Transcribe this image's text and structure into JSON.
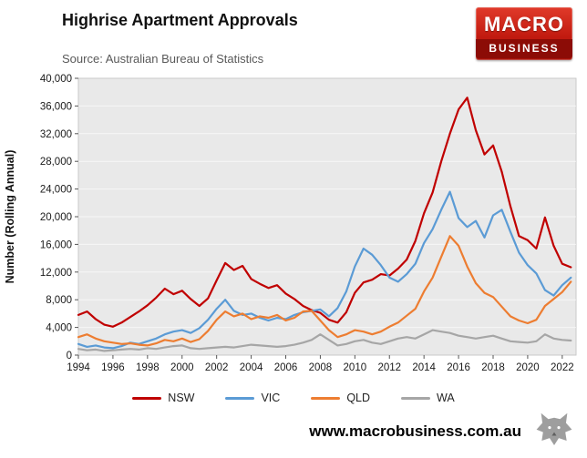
{
  "header": {
    "title": "Highrise Apartment Approvals",
    "subtitle": "Source: Australian Bureau of Statistics"
  },
  "logo": {
    "line1": "MACRO",
    "line2": "BUSINESS",
    "bg_color": "#c21b10"
  },
  "footer": {
    "url": "www.macrobusiness.com.au",
    "wolf_icon": "wolf-logo"
  },
  "chart_data": {
    "type": "line",
    "title": "Highrise Apartment Approvals",
    "subtitle": "Source: Australian Bureau of Statistics",
    "xlabel": "",
    "ylabel": "Number (Rolling Annual)",
    "ylim": [
      0,
      40000
    ],
    "ytick_step": 4000,
    "xlim": [
      1994,
      2022.8
    ],
    "xticks": [
      1994,
      1996,
      1998,
      2000,
      2002,
      2004,
      2006,
      2008,
      2010,
      2012,
      2014,
      2016,
      2018,
      2020,
      2022
    ],
    "grid": true,
    "plot_bg": "#e9e9e9",
    "legend_position": "bottom",
    "x": [
      1994,
      1994.5,
      1995,
      1995.5,
      1996,
      1996.5,
      1997,
      1997.5,
      1998,
      1998.5,
      1999,
      1999.5,
      2000,
      2000.5,
      2001,
      2001.5,
      2002,
      2002.5,
      2003,
      2003.5,
      2004,
      2004.5,
      2005,
      2005.5,
      2006,
      2006.5,
      2007,
      2007.5,
      2008,
      2008.5,
      2009,
      2009.5,
      2010,
      2010.5,
      2011,
      2011.5,
      2012,
      2012.5,
      2013,
      2013.5,
      2014,
      2014.5,
      2015,
      2015.5,
      2016,
      2016.5,
      2017,
      2017.5,
      2018,
      2018.5,
      2019,
      2019.5,
      2020,
      2020.5,
      2021,
      2021.5,
      2022,
      2022.5
    ],
    "series": [
      {
        "name": "NSW",
        "color": "#c00000",
        "values": [
          5800,
          6300,
          5200,
          4400,
          4100,
          4700,
          5500,
          6300,
          7200,
          8300,
          9600,
          8800,
          9300,
          8100,
          7100,
          8200,
          10800,
          13300,
          12300,
          12900,
          11000,
          10300,
          9700,
          10100,
          8900,
          8100,
          7100,
          6500,
          6100,
          5100,
          4700,
          6200,
          9000,
          10500,
          10900,
          11700,
          11500,
          12500,
          13800,
          16500,
          20500,
          23500,
          28000,
          32000,
          35500,
          37200,
          32500,
          29000,
          30300,
          26500,
          21500,
          17200,
          16600,
          15400,
          19900,
          15800,
          13200,
          12700
        ]
      },
      {
        "name": "VIC",
        "color": "#5b9bd5",
        "values": [
          1600,
          1200,
          1400,
          1100,
          1000,
          1300,
          1800,
          1600,
          2000,
          2400,
          3000,
          3400,
          3600,
          3200,
          3900,
          5100,
          6700,
          8000,
          6400,
          5800,
          6000,
          5400,
          5000,
          5400,
          5200,
          5800,
          6200,
          6400,
          6600,
          5600,
          6800,
          9200,
          12800,
          15400,
          14500,
          13000,
          11200,
          10600,
          11700,
          13200,
          16200,
          18200,
          21000,
          23600,
          19800,
          18500,
          19400,
          17000,
          20200,
          21000,
          17800,
          14800,
          13000,
          11800,
          9400,
          8600,
          10100,
          11200
        ]
      },
      {
        "name": "QLD",
        "color": "#ed7d31",
        "values": [
          2600,
          3000,
          2400,
          2000,
          1800,
          1600,
          1700,
          1500,
          1400,
          1700,
          2200,
          2000,
          2400,
          1900,
          2300,
          3500,
          5100,
          6300,
          5600,
          6000,
          5200,
          5600,
          5400,
          5800,
          5000,
          5400,
          6300,
          6400,
          5000,
          3600,
          2600,
          3000,
          3600,
          3400,
          3000,
          3400,
          4100,
          4700,
          5700,
          6700,
          9200,
          11200,
          14200,
          17200,
          15800,
          12800,
          10400,
          9000,
          8400,
          7000,
          5600,
          5000,
          4600,
          5100,
          7100,
          8100,
          9100,
          10600
        ]
      },
      {
        "name": "WA",
        "color": "#a6a6a6",
        "values": [
          900,
          700,
          800,
          600,
          700,
          800,
          900,
          800,
          1000,
          900,
          1100,
          1300,
          1400,
          1000,
          900,
          1000,
          1100,
          1200,
          1100,
          1300,
          1500,
          1400,
          1300,
          1200,
          1300,
          1500,
          1800,
          2200,
          3000,
          2200,
          1400,
          1600,
          2000,
          2200,
          1800,
          1600,
          2000,
          2400,
          2600,
          2400,
          3000,
          3600,
          3400,
          3200,
          2800,
          2600,
          2400,
          2600,
          2800,
          2400,
          2000,
          1900,
          1800,
          2000,
          3000,
          2400,
          2200,
          2100
        ]
      }
    ]
  }
}
